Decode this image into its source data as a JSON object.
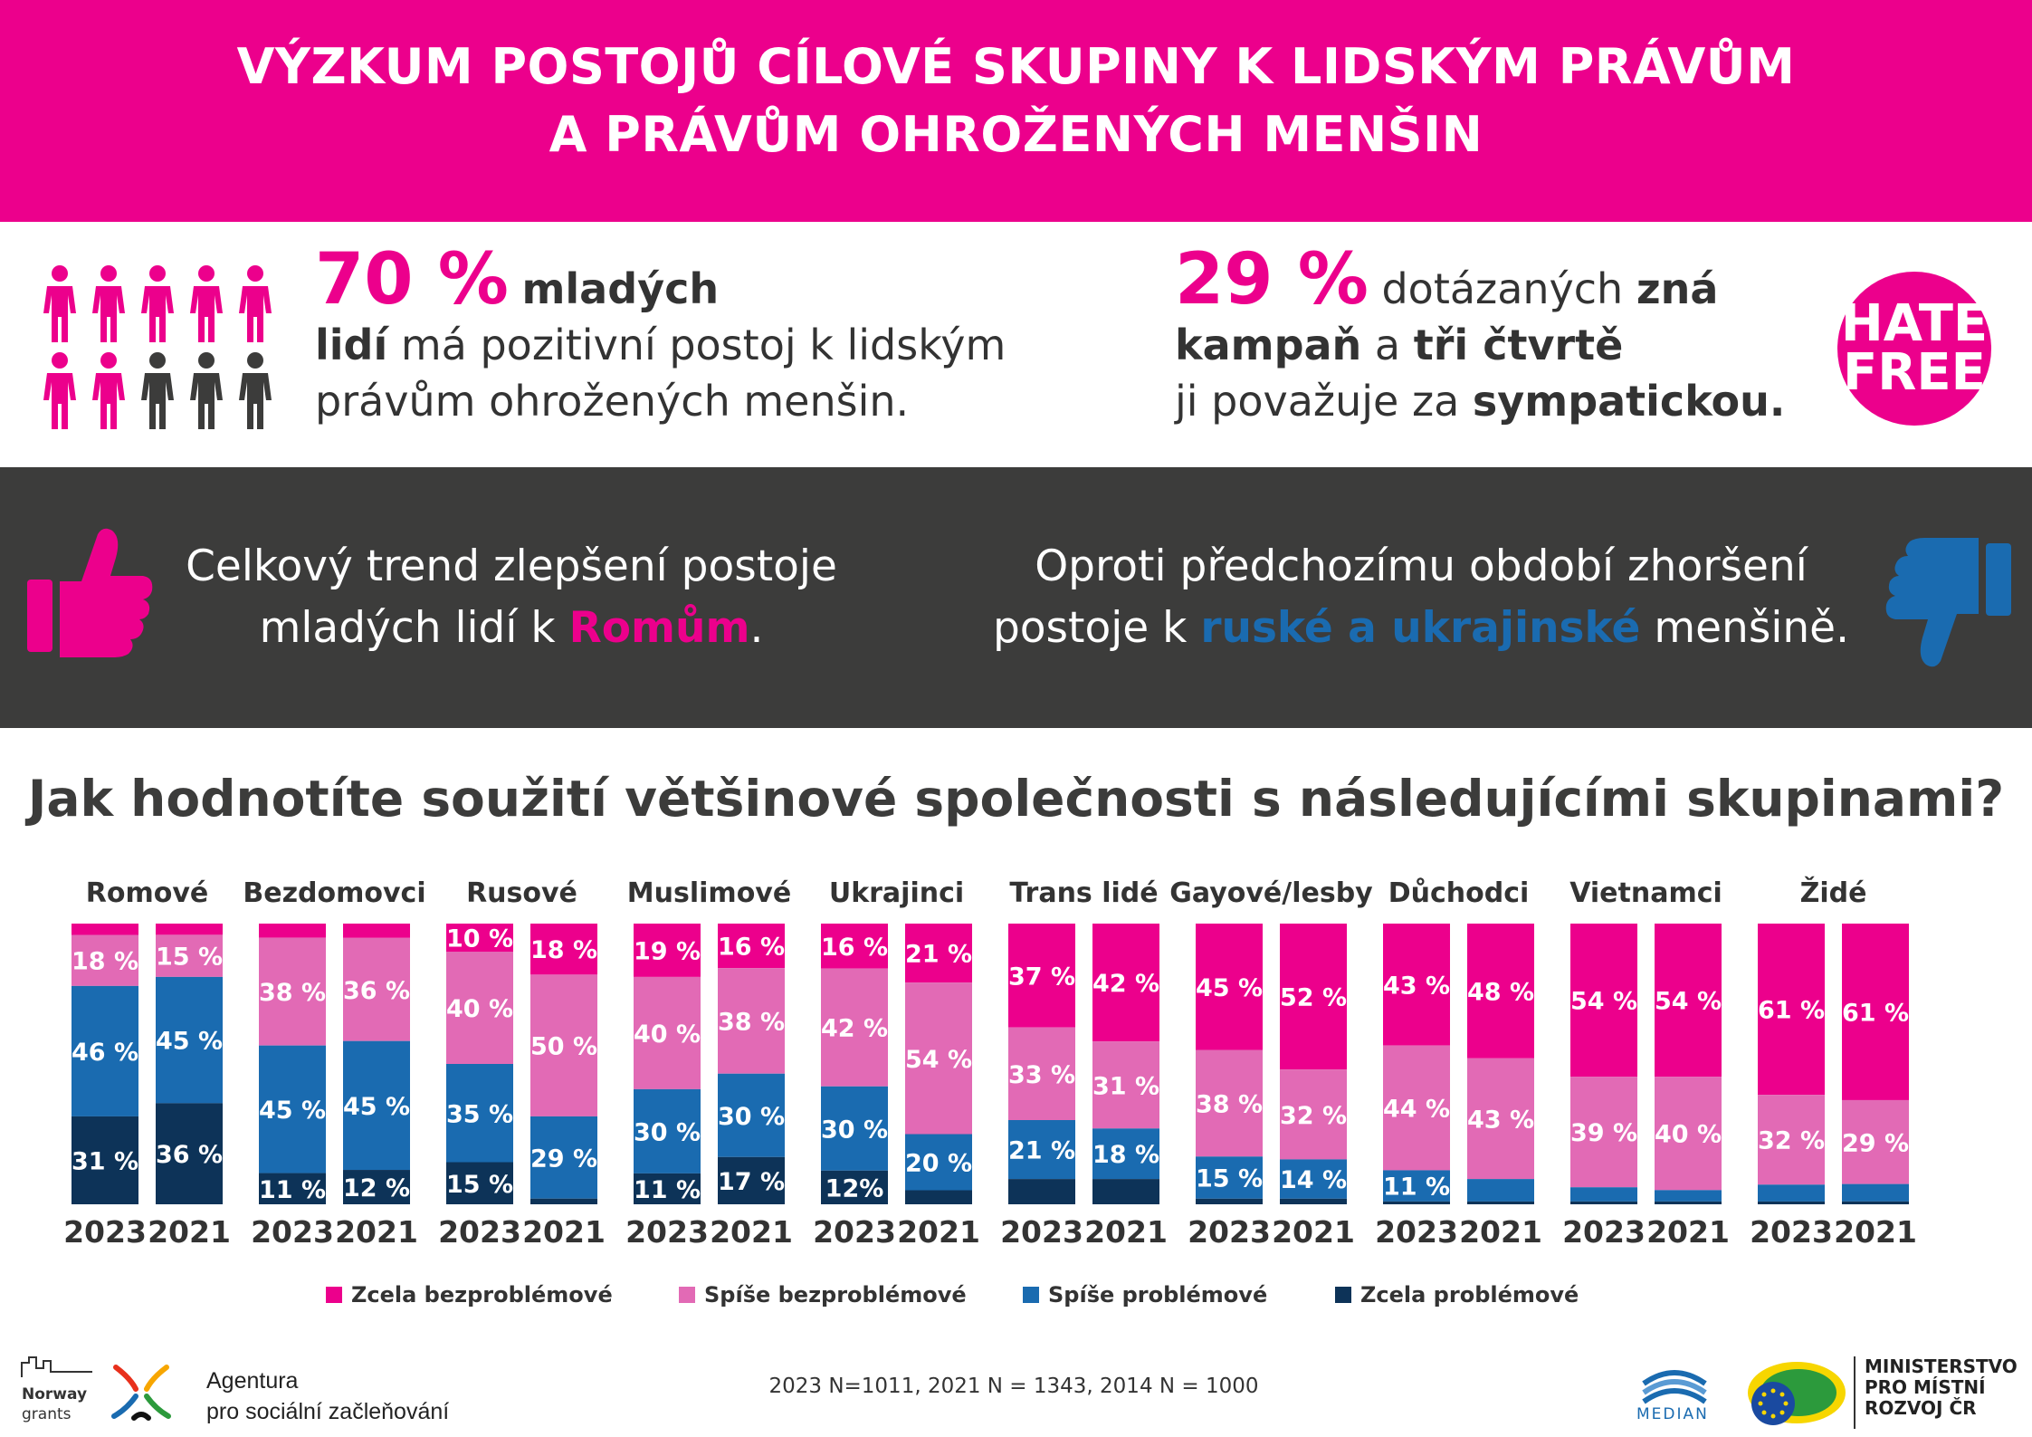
{
  "header": {
    "title_line1": "VÝZKUM POSTOJŮ CÍLOVÉ SKUPINY K LIDSKÝM PRÁVŮM",
    "title_line2": "A PRÁVŮM OHROŽENÝCH MENŠIN"
  },
  "stat1": {
    "percent": "70 %",
    "bold1": "mladých",
    "bold2": "lidí",
    "text1": "má pozitivní postoj k lidským",
    "text2": "právům ohrožených menšin.",
    "people_highlighted": 7,
    "people_total": 10
  },
  "stat2": {
    "percent": "29 %",
    "text1": "dotázaných",
    "bold1": "zná",
    "bold2": "kampaň",
    "text2": "a",
    "bold3": "tři čtvrtě",
    "text3": "ji považuje za",
    "bold4": "sympatickou."
  },
  "hate_free": {
    "line1": "HATE",
    "line2": "FREE"
  },
  "trend_left": {
    "text1": "Celkový trend zlepšení postoje",
    "text2": "mladých lidí k",
    "highlight": "Romům",
    "text3": "."
  },
  "trend_right": {
    "text1": "Oproti předchozímu období zhoršení",
    "text2": "postoje k",
    "highlight": "ruské a ukrajinské",
    "text3": "menšině."
  },
  "question": "Jak hodnotíte soužití většinové společnosti s následujícími skupinami?",
  "colors": {
    "pink": "#ec008c",
    "light_pink": "#e26ab5",
    "blue": "#1a6bb0",
    "navy": "#0d3358",
    "dark": "#3c3c3b"
  },
  "chart_data": {
    "type": "bar",
    "stacked": true,
    "normalized": true,
    "series_names": [
      "Zcela bezproblémové",
      "Spíše bezproblémové",
      "Spíše problémové",
      "Zcela problémové"
    ],
    "groups": [
      {
        "name": "Romové",
        "bars": [
          {
            "year": "2023",
            "values": [
              4,
              18,
              46,
              31
            ],
            "labels": [
              "",
              "18 %",
              "46 %",
              "31 %"
            ]
          },
          {
            "year": "2021",
            "values": [
              4,
              15,
              45,
              36
            ],
            "labels": [
              "",
              "15 %",
              "45 %",
              "36 %"
            ]
          }
        ]
      },
      {
        "name": "Bezdomovci",
        "bars": [
          {
            "year": "2023",
            "values": [
              5,
              38,
              45,
              11
            ],
            "labels": [
              "",
              "38 %",
              "45 %",
              "11 %"
            ]
          },
          {
            "year": "2021",
            "values": [
              5,
              36,
              45,
              12
            ],
            "labels": [
              "",
              "36 %",
              "45 %",
              "12 %"
            ]
          }
        ]
      },
      {
        "name": "Rusové",
        "bars": [
          {
            "year": "2023",
            "values": [
              10,
              40,
              35,
              15
            ],
            "labels": [
              "10 %",
              "40 %",
              "35 %",
              "15 %"
            ]
          },
          {
            "year": "2021",
            "values": [
              18,
              50,
              29,
              2
            ],
            "labels": [
              "18 %",
              "50 %",
              "29 %",
              ""
            ]
          }
        ]
      },
      {
        "name": "Muslimové",
        "bars": [
          {
            "year": "2023",
            "values": [
              19,
              40,
              30,
              11
            ],
            "labels": [
              "19 %",
              "40 %",
              "30 %",
              "11 %"
            ]
          },
          {
            "year": "2021",
            "values": [
              16,
              38,
              30,
              17
            ],
            "labels": [
              "16 %",
              "38 %",
              "30 %",
              "17 %"
            ]
          }
        ]
      },
      {
        "name": "Ukrajinci",
        "bars": [
          {
            "year": "2023",
            "values": [
              16,
              42,
              30,
              12
            ],
            "labels": [
              "16 %",
              "42 %",
              "30 %",
              "12%"
            ]
          },
          {
            "year": "2021",
            "values": [
              21,
              54,
              20,
              5
            ],
            "labels": [
              "21 %",
              "54 %",
              "20 %",
              ""
            ]
          }
        ]
      },
      {
        "name": "Trans lidé",
        "bars": [
          {
            "year": "2023",
            "values": [
              37,
              33,
              21,
              9
            ],
            "labels": [
              "37 %",
              "33 %",
              "21 %",
              ""
            ]
          },
          {
            "year": "2021",
            "values": [
              42,
              31,
              18,
              9
            ],
            "labels": [
              "42 %",
              "31 %",
              "18 %",
              ""
            ]
          }
        ]
      },
      {
        "name": "Gayové/lesby",
        "bars": [
          {
            "year": "2023",
            "values": [
              45,
              38,
              15,
              2
            ],
            "labels": [
              "45 %",
              "38 %",
              "15 %",
              ""
            ]
          },
          {
            "year": "2021",
            "values": [
              52,
              32,
              14,
              2
            ],
            "labels": [
              "52 %",
              "32 %",
              "14 %",
              ""
            ]
          }
        ]
      },
      {
        "name": "Důchodci",
        "bars": [
          {
            "year": "2023",
            "values": [
              43,
              44,
              11,
              1
            ],
            "labels": [
              "43 %",
              "44 %",
              "11 %",
              ""
            ]
          },
          {
            "year": "2021",
            "values": [
              48,
              43,
              8,
              1
            ],
            "labels": [
              "48 %",
              "43 %",
              "",
              ""
            ]
          }
        ]
      },
      {
        "name": "Vietnamci",
        "bars": [
          {
            "year": "2023",
            "values": [
              54,
              39,
              5,
              1
            ],
            "labels": [
              "54 %",
              "39 %",
              "",
              ""
            ]
          },
          {
            "year": "2021",
            "values": [
              54,
              40,
              4,
              1
            ],
            "labels": [
              "54 %",
              "40 %",
              "",
              ""
            ]
          }
        ]
      },
      {
        "name": "Židé",
        "bars": [
          {
            "year": "2023",
            "values": [
              61,
              32,
              6,
              1
            ],
            "labels": [
              "61 %",
              "32 %",
              "",
              ""
            ]
          },
          {
            "year": "2021",
            "values": [
              61,
              29,
              6,
              1
            ],
            "labels": [
              "61 %",
              "29 %",
              "",
              ""
            ]
          }
        ]
      }
    ],
    "legend_position": "bottom",
    "grid": false
  },
  "legend": [
    {
      "label": "Zcela bezproblémové",
      "color": "#ec008c"
    },
    {
      "label": "Spíše bezproblémové",
      "color": "#e26ab5"
    },
    {
      "label": "Spíše problémové",
      "color": "#1a6bb0"
    },
    {
      "label": "Zcela problémové",
      "color": "#0d3358"
    }
  ],
  "footnote": "2023 N=1011, 2021 N = 1343, 2014 N = 1000",
  "logos": {
    "norway_line1": "Norway",
    "norway_line2": "grants",
    "agency_line1": "Agentura",
    "agency_line2": "pro sociální začleňování",
    "median": "MEDIAN",
    "ministry_line1": "MINISTERSTVO",
    "ministry_line2": "PRO MÍSTNÍ",
    "ministry_line3": "ROZVOJ ČR"
  }
}
